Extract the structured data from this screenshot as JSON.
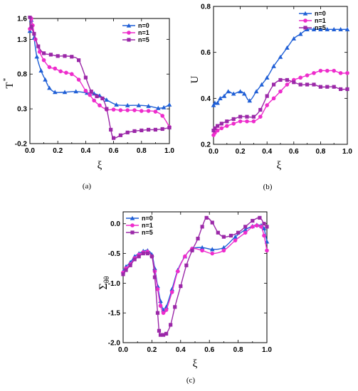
{
  "colors": {
    "n0": "#1f5fd6",
    "n1": "#ee2ccc",
    "n5": "#9b28a8"
  },
  "chart_data": [
    {
      "id": "a",
      "type": "line",
      "caption": "(a)",
      "xlabel": "ξ",
      "ylabel": "T",
      "ylabel_sup": "*",
      "xlim": [
        0,
        1
      ],
      "ylim": [
        -0.2,
        1.6
      ],
      "xticks": [
        0.0,
        0.2,
        0.4,
        0.6,
        0.8,
        1.0
      ],
      "xtick_labels": [
        "0.0",
        "0.2",
        "0.4",
        "0.6",
        "0.8",
        "1.0"
      ],
      "yticks": [
        -0.2,
        0.3,
        0.8,
        1.3,
        1.6
      ],
      "ytick_labels": [
        "-0.2",
        "0.3",
        "0.8",
        "1.3",
        "1.6"
      ],
      "legend": "top-right",
      "series": [
        {
          "name": "n=0",
          "marker": "triangle",
          "color": "#1f5fd6",
          "x": [
            0,
            0.01,
            0.03,
            0.05,
            0.08,
            0.11,
            0.14,
            0.18,
            0.25,
            0.33,
            0.41,
            0.46,
            0.5,
            0.55,
            0.62,
            0.7,
            0.78,
            0.85,
            0.92,
            0.96,
            1.0
          ],
          "y": [
            1.42,
            1.58,
            1.32,
            1.05,
            0.85,
            0.72,
            0.6,
            0.54,
            0.54,
            0.55,
            0.53,
            0.52,
            0.49,
            0.43,
            0.36,
            0.35,
            0.35,
            0.34,
            0.31,
            0.32,
            0.36
          ]
        },
        {
          "name": "n=1",
          "marker": "circle",
          "color": "#ee2ccc",
          "x": [
            0,
            0.01,
            0.02,
            0.04,
            0.07,
            0.1,
            0.14,
            0.18,
            0.22,
            0.26,
            0.3,
            0.35,
            0.4,
            0.43,
            0.46,
            0.5,
            0.55,
            0.6,
            0.65,
            0.7,
            0.75,
            0.8,
            0.85,
            0.9,
            0.95,
            1.0
          ],
          "y": [
            1.45,
            1.6,
            1.5,
            1.3,
            1.12,
            1.0,
            0.9,
            0.88,
            0.84,
            0.82,
            0.8,
            0.72,
            0.56,
            0.5,
            0.42,
            0.35,
            0.29,
            0.29,
            0.28,
            0.28,
            0.28,
            0.27,
            0.27,
            0.26,
            0.2,
            0.04
          ]
        },
        {
          "name": "n=5",
          "marker": "square",
          "color": "#9b28a8",
          "x": [
            0,
            0.01,
            0.03,
            0.06,
            0.1,
            0.15,
            0.2,
            0.25,
            0.3,
            0.35,
            0.4,
            0.44,
            0.48,
            0.52,
            0.55,
            0.58,
            0.6,
            0.65,
            0.7,
            0.75,
            0.8,
            0.85,
            0.9,
            0.95,
            1.0
          ],
          "y": [
            1.62,
            1.48,
            1.38,
            1.2,
            1.1,
            1.08,
            1.06,
            1.06,
            1.05,
            1.0,
            0.75,
            0.55,
            0.48,
            0.45,
            0.3,
            0.0,
            -0.12,
            -0.08,
            -0.04,
            -0.02,
            -0.01,
            0.0,
            0.0,
            0.01,
            0.03
          ]
        }
      ]
    },
    {
      "id": "b",
      "type": "line",
      "caption": "(b)",
      "xlabel": "ξ",
      "ylabel": "U",
      "xlim": [
        0,
        1
      ],
      "ylim": [
        0.2,
        0.8
      ],
      "xticks": [
        0.0,
        0.2,
        0.4,
        0.6,
        0.8,
        1.0
      ],
      "xtick_labels": [
        "0.0",
        "0.2",
        "0.4",
        "0.6",
        "0.8",
        "1.0"
      ],
      "yticks": [
        0.2,
        0.4,
        0.6,
        0.8
      ],
      "ytick_labels": [
        "0.2",
        "0.4",
        "0.6",
        "0.8"
      ],
      "legend": "top-right",
      "series": [
        {
          "name": "n=0",
          "marker": "triangle",
          "color": "#1f5fd6",
          "x": [
            0,
            0.01,
            0.03,
            0.05,
            0.08,
            0.11,
            0.15,
            0.2,
            0.23,
            0.27,
            0.32,
            0.36,
            0.4,
            0.45,
            0.5,
            0.55,
            0.6,
            0.65,
            0.7,
            0.75,
            0.8,
            0.85,
            0.9,
            0.95,
            1.0
          ],
          "y": [
            0.37,
            0.38,
            0.38,
            0.4,
            0.41,
            0.43,
            0.42,
            0.43,
            0.42,
            0.39,
            0.43,
            0.46,
            0.49,
            0.54,
            0.58,
            0.62,
            0.66,
            0.68,
            0.7,
            0.7,
            0.7,
            0.7,
            0.7,
            0.7,
            0.7
          ]
        },
        {
          "name": "n=1",
          "marker": "circle",
          "color": "#ee2ccc",
          "x": [
            0,
            0.01,
            0.03,
            0.06,
            0.1,
            0.15,
            0.2,
            0.25,
            0.3,
            0.35,
            0.4,
            0.45,
            0.5,
            0.55,
            0.6,
            0.65,
            0.7,
            0.75,
            0.8,
            0.85,
            0.9,
            0.95,
            1.0
          ],
          "y": [
            0.24,
            0.25,
            0.26,
            0.27,
            0.28,
            0.29,
            0.3,
            0.3,
            0.3,
            0.32,
            0.37,
            0.4,
            0.43,
            0.46,
            0.48,
            0.49,
            0.5,
            0.51,
            0.52,
            0.52,
            0.52,
            0.51,
            0.51
          ]
        },
        {
          "name": "n=5",
          "marker": "square",
          "color": "#9b28a8",
          "x": [
            0,
            0.01,
            0.03,
            0.06,
            0.1,
            0.15,
            0.2,
            0.25,
            0.3,
            0.35,
            0.4,
            0.45,
            0.5,
            0.55,
            0.6,
            0.65,
            0.7,
            0.75,
            0.8,
            0.85,
            0.9,
            0.95,
            1.0
          ],
          "y": [
            0.26,
            0.27,
            0.28,
            0.29,
            0.3,
            0.31,
            0.32,
            0.32,
            0.32,
            0.35,
            0.41,
            0.46,
            0.48,
            0.48,
            0.47,
            0.46,
            0.46,
            0.46,
            0.45,
            0.45,
            0.45,
            0.44,
            0.44
          ]
        }
      ]
    },
    {
      "id": "c",
      "type": "line",
      "caption": "(c)",
      "xlabel": "ξ",
      "ylabel": "Σθθ",
      "ylabel_main": "Σ",
      "ylabel_sub": "θθ",
      "xlim": [
        0,
        1
      ],
      "ylim": [
        -2.0,
        0.2
      ],
      "xticks": [
        0.0,
        0.2,
        0.4,
        0.6,
        0.8,
        1.0
      ],
      "xtick_labels": [
        "0.0",
        "0.2",
        "0.4",
        "0.6",
        "0.8",
        "1.0"
      ],
      "yticks": [
        -2.0,
        -1.5,
        -1.0,
        -0.5,
        0.0
      ],
      "ytick_labels": [
        "-2.0",
        "-1.5",
        "-1.0",
        "-0.5",
        "0.0"
      ],
      "legend": "top-left",
      "series": [
        {
          "name": "n=0",
          "marker": "triangle",
          "color": "#1f5fd6",
          "x": [
            0,
            0.02,
            0.05,
            0.08,
            0.11,
            0.14,
            0.17,
            0.2,
            0.22,
            0.24,
            0.26,
            0.28,
            0.3,
            0.34,
            0.38,
            0.43,
            0.48,
            0.55,
            0.62,
            0.7,
            0.78,
            0.85,
            0.9,
            0.93,
            0.96,
            0.98,
            1.0
          ],
          "y": [
            -0.8,
            -0.72,
            -0.65,
            -0.55,
            -0.5,
            -0.46,
            -0.45,
            -0.52,
            -0.75,
            -1.05,
            -1.3,
            -1.45,
            -1.4,
            -1.1,
            -0.78,
            -0.55,
            -0.42,
            -0.4,
            -0.43,
            -0.4,
            -0.22,
            -0.1,
            -0.04,
            -0.02,
            -0.03,
            -0.08,
            -0.3
          ]
        },
        {
          "name": "n=1",
          "marker": "circle",
          "color": "#ee2ccc",
          "x": [
            0,
            0.02,
            0.05,
            0.08,
            0.11,
            0.14,
            0.17,
            0.2,
            0.22,
            0.24,
            0.26,
            0.28,
            0.3,
            0.34,
            0.38,
            0.43,
            0.48,
            0.55,
            0.62,
            0.7,
            0.78,
            0.85,
            0.9,
            0.93,
            0.96,
            0.98,
            1.0
          ],
          "y": [
            -0.82,
            -0.75,
            -0.68,
            -0.58,
            -0.52,
            -0.48,
            -0.47,
            -0.55,
            -0.8,
            -1.1,
            -1.38,
            -1.5,
            -1.45,
            -1.15,
            -0.8,
            -0.55,
            -0.42,
            -0.45,
            -0.5,
            -0.45,
            -0.28,
            -0.15,
            -0.05,
            -0.03,
            -0.05,
            -0.2,
            -0.45
          ]
        },
        {
          "name": "n=5",
          "marker": "square",
          "color": "#9b28a8",
          "x": [
            0,
            0.02,
            0.05,
            0.08,
            0.11,
            0.14,
            0.17,
            0.2,
            0.22,
            0.24,
            0.25,
            0.26,
            0.28,
            0.3,
            0.33,
            0.36,
            0.4,
            0.44,
            0.48,
            0.52,
            0.55,
            0.58,
            0.62,
            0.66,
            0.7,
            0.75,
            0.8,
            0.85,
            0.9,
            0.95,
            0.98,
            1.0
          ],
          "y": [
            -0.85,
            -0.78,
            -0.7,
            -0.6,
            -0.55,
            -0.5,
            -0.5,
            -0.55,
            -0.9,
            -1.5,
            -1.8,
            -1.87,
            -1.87,
            -1.85,
            -1.7,
            -1.4,
            -1.05,
            -0.7,
            -0.45,
            -0.25,
            -0.05,
            0.1,
            0.02,
            -0.15,
            -0.22,
            -0.2,
            -0.15,
            -0.05,
            0.05,
            0.1,
            0.0,
            -0.05
          ]
        }
      ]
    }
  ]
}
